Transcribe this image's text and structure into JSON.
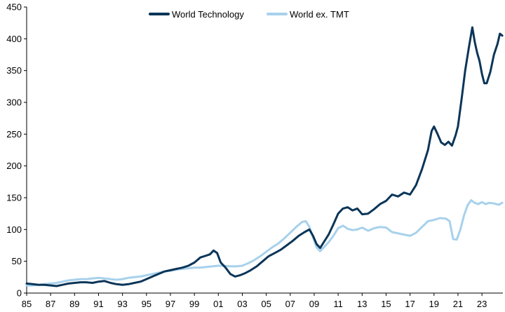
{
  "chart_data": {
    "type": "line",
    "title": "",
    "xlabel": "",
    "ylabel": "",
    "xlim": [
      1985,
      2024.75
    ],
    "ylim": [
      0,
      450
    ],
    "grid": false,
    "legend_position": "top-center",
    "x_tick_labels": [
      "85",
      "87",
      "89",
      "91",
      "93",
      "95",
      "97",
      "99",
      "01",
      "03",
      "05",
      "07",
      "09",
      "11",
      "13",
      "15",
      "17",
      "19",
      "21",
      "23"
    ],
    "x_tick_values": [
      1985,
      1987,
      1989,
      1991,
      1993,
      1995,
      1997,
      1999,
      2001,
      2003,
      2005,
      2007,
      2009,
      2011,
      2013,
      2015,
      2017,
      2019,
      2021,
      2023
    ],
    "y_tick_labels": [
      "0",
      "50",
      "100",
      "150",
      "200",
      "250",
      "300",
      "350",
      "400",
      "450"
    ],
    "y_tick_values": [
      0,
      50,
      100,
      150,
      200,
      250,
      300,
      350,
      400,
      450
    ],
    "series": [
      {
        "name": "World Technology",
        "color": "#0b3558",
        "points": [
          [
            1985.0,
            15
          ],
          [
            1985.5,
            14
          ],
          [
            1986.0,
            13
          ],
          [
            1986.5,
            13
          ],
          [
            1987.0,
            12
          ],
          [
            1987.5,
            11
          ],
          [
            1988.0,
            13
          ],
          [
            1988.5,
            15
          ],
          [
            1989.0,
            16
          ],
          [
            1989.5,
            17
          ],
          [
            1990.0,
            17
          ],
          [
            1990.5,
            16
          ],
          [
            1991.0,
            18
          ],
          [
            1991.5,
            19
          ],
          [
            1992.0,
            16
          ],
          [
            1992.5,
            14
          ],
          [
            1993.0,
            13
          ],
          [
            1993.5,
            14
          ],
          [
            1994.0,
            16
          ],
          [
            1994.5,
            18
          ],
          [
            1995.0,
            22
          ],
          [
            1995.5,
            26
          ],
          [
            1996.0,
            30
          ],
          [
            1996.5,
            34
          ],
          [
            1997.0,
            36
          ],
          [
            1997.5,
            38
          ],
          [
            1998.0,
            40
          ],
          [
            1998.5,
            43
          ],
          [
            1999.0,
            48
          ],
          [
            1999.5,
            56
          ],
          [
            2000.0,
            59
          ],
          [
            2000.3,
            61
          ],
          [
            2000.6,
            67
          ],
          [
            2000.9,
            63
          ],
          [
            2001.2,
            48
          ],
          [
            2001.6,
            40
          ],
          [
            2002.0,
            30
          ],
          [
            2002.4,
            26
          ],
          [
            2002.8,
            28
          ],
          [
            2003.2,
            31
          ],
          [
            2003.7,
            36
          ],
          [
            2004.2,
            42
          ],
          [
            2004.7,
            50
          ],
          [
            2005.2,
            58
          ],
          [
            2005.7,
            63
          ],
          [
            2006.2,
            68
          ],
          [
            2006.7,
            75
          ],
          [
            2007.2,
            82
          ],
          [
            2007.7,
            90
          ],
          [
            2008.2,
            96
          ],
          [
            2008.6,
            100
          ],
          [
            2008.9,
            90
          ],
          [
            2009.2,
            77
          ],
          [
            2009.5,
            71
          ],
          [
            2009.8,
            80
          ],
          [
            2010.2,
            92
          ],
          [
            2010.6,
            108
          ],
          [
            2011.0,
            125
          ],
          [
            2011.4,
            133
          ],
          [
            2011.8,
            135
          ],
          [
            2012.2,
            130
          ],
          [
            2012.6,
            133
          ],
          [
            2013.0,
            124
          ],
          [
            2013.5,
            125
          ],
          [
            2014.0,
            132
          ],
          [
            2014.5,
            140
          ],
          [
            2015.0,
            145
          ],
          [
            2015.5,
            155
          ],
          [
            2016.0,
            152
          ],
          [
            2016.5,
            158
          ],
          [
            2017.0,
            155
          ],
          [
            2017.5,
            170
          ],
          [
            2018.0,
            195
          ],
          [
            2018.5,
            225
          ],
          [
            2018.8,
            255
          ],
          [
            2019.0,
            262
          ],
          [
            2019.3,
            250
          ],
          [
            2019.6,
            237
          ],
          [
            2019.9,
            233
          ],
          [
            2020.2,
            238
          ],
          [
            2020.5,
            232
          ],
          [
            2020.8,
            248
          ],
          [
            2021.0,
            262
          ],
          [
            2021.3,
            305
          ],
          [
            2021.6,
            350
          ],
          [
            2021.9,
            385
          ],
          [
            2022.2,
            418
          ],
          [
            2022.4,
            395
          ],
          [
            2022.6,
            378
          ],
          [
            2022.8,
            365
          ],
          [
            2023.0,
            345
          ],
          [
            2023.2,
            330
          ],
          [
            2023.4,
            330
          ],
          [
            2023.7,
            348
          ],
          [
            2024.0,
            375
          ],
          [
            2024.3,
            392
          ],
          [
            2024.5,
            408
          ],
          [
            2024.7,
            405
          ]
        ]
      },
      {
        "name": "World ex. TMT",
        "color": "#a7d1ec",
        "points": [
          [
            1985.0,
            12
          ],
          [
            1985.5,
            12
          ],
          [
            1986.0,
            13
          ],
          [
            1986.5,
            14
          ],
          [
            1987.0,
            15
          ],
          [
            1987.5,
            16
          ],
          [
            1988.0,
            18
          ],
          [
            1988.5,
            20
          ],
          [
            1989.0,
            21
          ],
          [
            1989.5,
            22
          ],
          [
            1990.0,
            22
          ],
          [
            1990.5,
            23
          ],
          [
            1991.0,
            24
          ],
          [
            1991.5,
            23
          ],
          [
            1992.0,
            22
          ],
          [
            1992.5,
            21
          ],
          [
            1993.0,
            22
          ],
          [
            1993.5,
            24
          ],
          [
            1994.0,
            25
          ],
          [
            1994.5,
            26
          ],
          [
            1995.0,
            28
          ],
          [
            1995.5,
            30
          ],
          [
            1996.0,
            32
          ],
          [
            1996.5,
            34
          ],
          [
            1997.0,
            35
          ],
          [
            1997.5,
            37
          ],
          [
            1998.0,
            38
          ],
          [
            1998.5,
            39
          ],
          [
            1999.0,
            40
          ],
          [
            1999.5,
            40
          ],
          [
            2000.0,
            41
          ],
          [
            2000.5,
            42
          ],
          [
            2001.0,
            43
          ],
          [
            2001.5,
            43
          ],
          [
            2002.0,
            42
          ],
          [
            2002.5,
            42
          ],
          [
            2003.0,
            43
          ],
          [
            2003.5,
            47
          ],
          [
            2004.0,
            52
          ],
          [
            2004.5,
            58
          ],
          [
            2005.0,
            65
          ],
          [
            2005.5,
            72
          ],
          [
            2006.0,
            78
          ],
          [
            2006.5,
            86
          ],
          [
            2007.0,
            95
          ],
          [
            2007.5,
            104
          ],
          [
            2008.0,
            112
          ],
          [
            2008.3,
            113
          ],
          [
            2008.6,
            104
          ],
          [
            2008.9,
            88
          ],
          [
            2009.2,
            72
          ],
          [
            2009.5,
            66
          ],
          [
            2009.8,
            72
          ],
          [
            2010.2,
            80
          ],
          [
            2010.6,
            90
          ],
          [
            2011.0,
            102
          ],
          [
            2011.4,
            106
          ],
          [
            2011.8,
            101
          ],
          [
            2012.2,
            99
          ],
          [
            2012.6,
            100
          ],
          [
            2013.0,
            103
          ],
          [
            2013.5,
            98
          ],
          [
            2014.0,
            102
          ],
          [
            2014.5,
            104
          ],
          [
            2015.0,
            103
          ],
          [
            2015.5,
            96
          ],
          [
            2016.0,
            94
          ],
          [
            2016.5,
            92
          ],
          [
            2017.0,
            90
          ],
          [
            2017.5,
            95
          ],
          [
            2018.0,
            104
          ],
          [
            2018.5,
            113
          ],
          [
            2019.0,
            115
          ],
          [
            2019.5,
            118
          ],
          [
            2020.0,
            117
          ],
          [
            2020.3,
            113
          ],
          [
            2020.6,
            85
          ],
          [
            2020.9,
            84
          ],
          [
            2021.2,
            100
          ],
          [
            2021.5,
            122
          ],
          [
            2021.8,
            138
          ],
          [
            2022.1,
            146
          ],
          [
            2022.4,
            142
          ],
          [
            2022.7,
            140
          ],
          [
            2023.0,
            143
          ],
          [
            2023.3,
            140
          ],
          [
            2023.6,
            142
          ],
          [
            2024.0,
            141
          ],
          [
            2024.4,
            139
          ],
          [
            2024.7,
            142
          ]
        ]
      }
    ]
  }
}
